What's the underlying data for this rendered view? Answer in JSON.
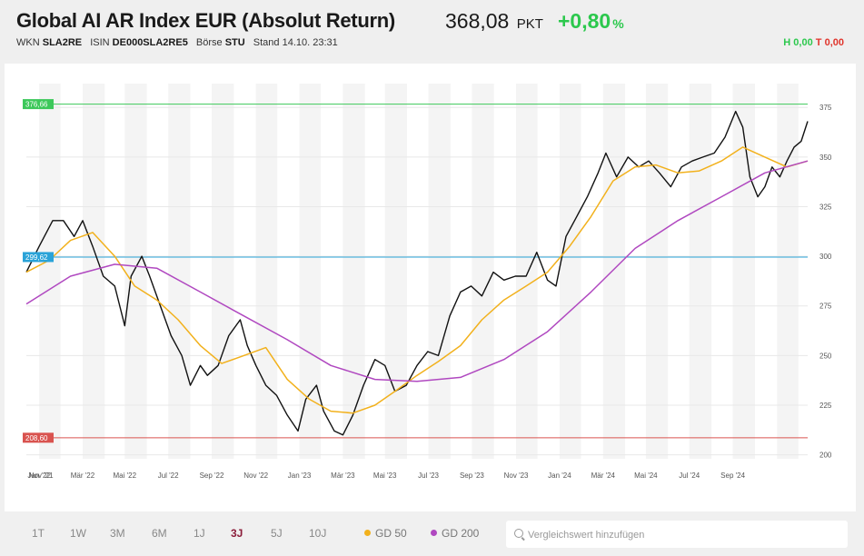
{
  "header": {
    "title": "Global AI AR Index EUR (Absolut Return)",
    "price": "368,08",
    "price_unit": "PKT",
    "change": "+0,80",
    "change_unit": "%",
    "wkn_label": "WKN",
    "wkn": "SLA2RE",
    "isin_label": "ISIN",
    "isin": "DE000SLA2RE5",
    "exchange_label": "Börse",
    "exchange": "STU",
    "stand_label": "Stand",
    "stand": "14.10. 23:31",
    "high_label": "H",
    "high": "0,00",
    "low_label": "T",
    "low": "0,00"
  },
  "controls": {
    "ranges": [
      "1T",
      "1W",
      "3M",
      "6M",
      "1J",
      "3J",
      "5J",
      "10J"
    ],
    "active_range": "3J",
    "legend": [
      {
        "label": "GD 50",
        "color": "#f2b11c"
      },
      {
        "label": "GD 200",
        "color": "#b048c0"
      }
    ],
    "search_placeholder": "Vergleichswert hinzufügen"
  },
  "chart_data": {
    "type": "line",
    "x_labels": [
      "Nov '21",
      "Jan '22",
      "Mär '22",
      "Mai '22",
      "Jul '22",
      "Sep '22",
      "Nov '22",
      "Jan '23",
      "Mär '23",
      "Mai '23",
      "Jul '23",
      "Sep '23",
      "Nov '23",
      "Jan '24",
      "Mär '24",
      "Mai '24",
      "Jul '24",
      "Sep '24"
    ],
    "xlim": [
      "2021-10-14",
      "2024-10-14"
    ],
    "ylim": [
      198,
      387
    ],
    "y_ticks": [
      200,
      225,
      250,
      275,
      300,
      325,
      350,
      375
    ],
    "grid_bands": true,
    "levels": [
      {
        "label": "376,66",
        "value": 376.66,
        "color": "#3cc85a"
      },
      {
        "label": "299,62",
        "value": 299.62,
        "color": "#2aa3d8"
      },
      {
        "label": "208,60",
        "value": 208.6,
        "color": "#d9534f"
      }
    ],
    "series": [
      {
        "name": "Global AI AR Index EUR",
        "color": "#111111",
        "x": [
          "2021-10-14",
          "2021-11-01",
          "2021-11-20",
          "2021-12-05",
          "2021-12-20",
          "2022-01-01",
          "2022-01-15",
          "2022-01-30",
          "2022-02-15",
          "2022-03-01",
          "2022-03-10",
          "2022-03-25",
          "2022-04-05",
          "2022-04-20",
          "2022-05-05",
          "2022-05-20",
          "2022-06-01",
          "2022-06-15",
          "2022-06-25",
          "2022-07-10",
          "2022-07-25",
          "2022-08-10",
          "2022-08-20",
          "2022-09-01",
          "2022-09-15",
          "2022-09-30",
          "2022-10-15",
          "2022-10-30",
          "2022-11-10",
          "2022-11-25",
          "2022-12-05",
          "2022-12-20",
          "2023-01-01",
          "2023-01-15",
          "2023-01-30",
          "2023-02-15",
          "2023-03-01",
          "2023-03-15",
          "2023-03-31",
          "2023-04-15",
          "2023-04-30",
          "2023-05-15",
          "2023-05-31",
          "2023-06-15",
          "2023-06-30",
          "2023-07-15",
          "2023-07-31",
          "2023-08-15",
          "2023-08-31",
          "2023-09-15",
          "2023-09-30",
          "2023-10-15",
          "2023-10-27",
          "2023-11-10",
          "2023-11-25",
          "2023-12-10",
          "2023-12-25",
          "2024-01-05",
          "2024-01-20",
          "2024-02-05",
          "2024-02-20",
          "2024-03-05",
          "2024-03-20",
          "2024-04-05",
          "2024-04-20",
          "2024-05-05",
          "2024-05-20",
          "2024-06-05",
          "2024-06-20",
          "2024-07-05",
          "2024-07-15",
          "2024-07-25",
          "2024-08-05",
          "2024-08-15",
          "2024-08-25",
          "2024-09-05",
          "2024-09-15",
          "2024-09-25",
          "2024-10-05",
          "2024-10-14"
        ],
        "values": [
          292,
          305,
          318,
          318,
          310,
          318,
          305,
          290,
          285,
          265,
          290,
          300,
          290,
          275,
          260,
          250,
          235,
          245,
          240,
          245,
          260,
          268,
          255,
          245,
          235,
          230,
          220,
          212,
          228,
          235,
          222,
          212,
          210,
          220,
          235,
          248,
          245,
          232,
          235,
          245,
          252,
          250,
          270,
          282,
          285,
          280,
          292,
          288,
          290,
          290,
          302,
          288,
          285,
          310,
          320,
          330,
          342,
          352,
          340,
          350,
          345,
          348,
          342,
          335,
          345,
          348,
          350,
          352,
          360,
          373,
          365,
          340,
          330,
          335,
          345,
          340,
          348,
          355,
          358,
          368
        ]
      },
      {
        "name": "GD 50",
        "color": "#f2b11c",
        "x": [
          "2021-10-14",
          "2021-11-15",
          "2021-12-15",
          "2022-01-15",
          "2022-02-15",
          "2022-03-15",
          "2022-04-15",
          "2022-05-15",
          "2022-06-15",
          "2022-07-15",
          "2022-08-15",
          "2022-09-15",
          "2022-10-15",
          "2022-11-15",
          "2022-12-15",
          "2023-01-15",
          "2023-02-15",
          "2023-03-15",
          "2023-04-15",
          "2023-05-15",
          "2023-06-15",
          "2023-07-15",
          "2023-08-15",
          "2023-09-15",
          "2023-10-15",
          "2023-11-15",
          "2023-12-15",
          "2024-01-15",
          "2024-02-15",
          "2024-03-15",
          "2024-04-15",
          "2024-05-15",
          "2024-06-15",
          "2024-07-15",
          "2024-08-15",
          "2024-09-15",
          "2024-10-14"
        ],
        "values": [
          292,
          298,
          308,
          312,
          300,
          285,
          278,
          268,
          255,
          246,
          250,
          254,
          238,
          228,
          222,
          221,
          225,
          232,
          240,
          247,
          255,
          268,
          278,
          285,
          292,
          305,
          320,
          338,
          345,
          346,
          342,
          343,
          348,
          355,
          350,
          345,
          348
        ]
      },
      {
        "name": "GD 200",
        "color": "#b048c0",
        "x": [
          "2021-10-14",
          "2021-12-15",
          "2022-02-15",
          "2022-04-15",
          "2022-06-15",
          "2022-08-15",
          "2022-10-15",
          "2022-12-15",
          "2023-02-15",
          "2023-04-15",
          "2023-06-15",
          "2023-08-15",
          "2023-10-15",
          "2023-12-15",
          "2024-02-15",
          "2024-04-15",
          "2024-06-15",
          "2024-08-15",
          "2024-10-14"
        ],
        "values": [
          276,
          290,
          296,
          294,
          282,
          270,
          258,
          245,
          238,
          237,
          239,
          248,
          262,
          282,
          304,
          318,
          330,
          342,
          348
        ]
      }
    ]
  }
}
